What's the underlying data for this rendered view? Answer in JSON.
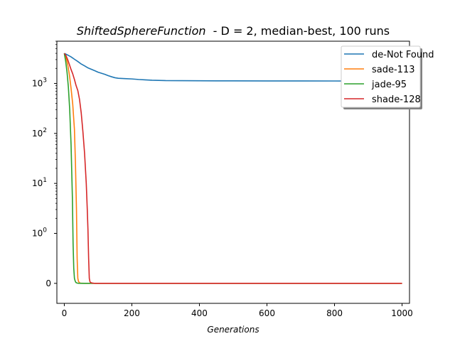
{
  "chart_data": {
    "type": "line",
    "title_italic": "ShiftedSphereFunction",
    "title_rest": "  - D = 2, median-best, 100 runs",
    "xlabel": "Generations",
    "ylabel": "",
    "xlim": [
      -22,
      1022
    ],
    "xticks": [
      0,
      200,
      400,
      600,
      800,
      1000
    ],
    "xtick_labels": [
      "0",
      "200",
      "400",
      "600",
      "800",
      "1000"
    ],
    "y_scale": "symlog",
    "y_linthresh": 1,
    "ylim": [
      -0.4,
      7000
    ],
    "yticks": [
      0,
      1,
      10,
      100,
      1000
    ],
    "ytick_labels": [
      "0",
      "10^0",
      "10^1",
      "10^2",
      "10^3"
    ],
    "grid": false,
    "legend_position": "top-right",
    "series": [
      {
        "name": "de-Not Found",
        "color": "#1f77b4",
        "x": [
          0,
          10,
          20,
          30,
          40,
          50,
          60,
          70,
          80,
          90,
          100,
          110,
          120,
          130,
          140,
          150,
          160,
          180,
          200,
          220,
          240,
          260,
          300,
          350,
          400,
          450,
          480,
          500,
          600,
          700,
          800,
          850,
          900,
          1000
        ],
        "y": [
          4000,
          3700,
          3400,
          3050,
          2750,
          2450,
          2250,
          2050,
          1920,
          1800,
          1680,
          1600,
          1520,
          1430,
          1360,
          1300,
          1270,
          1250,
          1230,
          1200,
          1180,
          1160,
          1140,
          1135,
          1130,
          1128,
          1127,
          1125,
          1123,
          1122,
          1120,
          1118,
          1112,
          1110
        ]
      },
      {
        "name": "sade-113",
        "color": "#ff7f0e",
        "x": [
          0,
          5,
          10,
          15,
          20,
          25,
          30,
          33,
          36,
          38,
          40,
          42,
          45,
          50,
          60,
          80,
          113,
          200,
          400,
          600,
          800,
          1000
        ],
        "y": [
          4000,
          3300,
          2400,
          1500,
          800,
          380,
          120,
          25,
          3,
          0.5,
          0.1,
          0.04,
          0.01,
          0.002,
          0,
          0,
          0,
          0,
          0,
          0,
          0,
          0
        ]
      },
      {
        "name": "jade-95",
        "color": "#2ca02c",
        "x": [
          0,
          4,
          8,
          12,
          16,
          20,
          24,
          26,
          28,
          30,
          32,
          34,
          36,
          40,
          50,
          70,
          95,
          200,
          400,
          600,
          800,
          1000
        ],
        "y": [
          4000,
          2800,
          1700,
          850,
          300,
          60,
          5,
          0.8,
          0.3,
          0.1,
          0.05,
          0.02,
          0.01,
          0.003,
          0,
          0,
          0,
          0,
          0,
          0,
          0,
          0
        ]
      },
      {
        "name": "shade-128",
        "color": "#d62728",
        "x": [
          0,
          5,
          10,
          15,
          20,
          25,
          30,
          35,
          40,
          45,
          50,
          55,
          60,
          65,
          68,
          70,
          72,
          74,
          76,
          80,
          90,
          128,
          200,
          400,
          600,
          800,
          1000
        ],
        "y": [
          4000,
          3600,
          3000,
          2400,
          1900,
          1550,
          1200,
          900,
          720,
          480,
          260,
          110,
          40,
          10,
          3,
          1.2,
          0.5,
          0.1,
          0.03,
          0.01,
          0,
          0,
          0,
          0,
          0,
          0,
          0
        ]
      }
    ]
  }
}
